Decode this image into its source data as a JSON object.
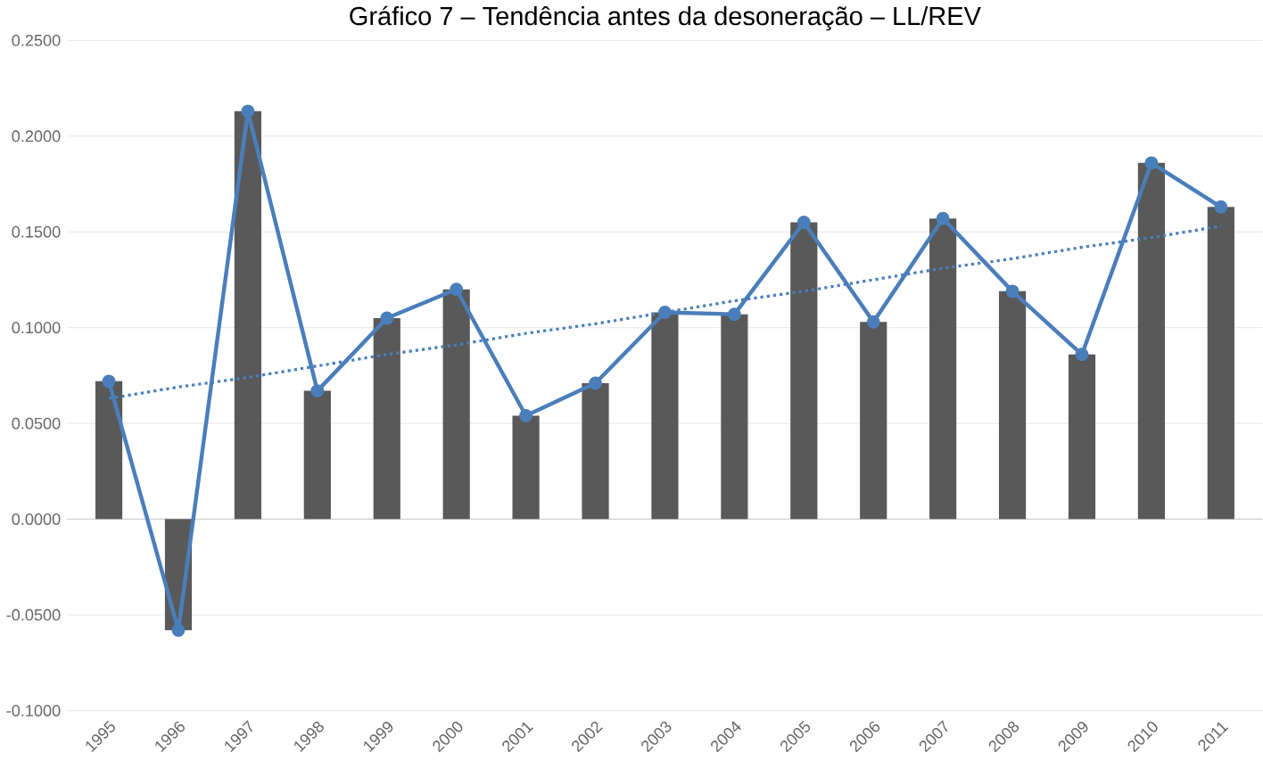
{
  "chart_data": {
    "type": "bar",
    "title": "Gráfico 7 – Tendência antes da desoneração – LL/REV",
    "categories": [
      "1995",
      "1996",
      "1997",
      "1998",
      "1999",
      "2000",
      "2001",
      "2002",
      "2003",
      "2004",
      "2005",
      "2006",
      "2007",
      "2008",
      "2009",
      "2010",
      "2011"
    ],
    "series": [
      {
        "color": "#595959",
        "values": [
          0.072,
          -0.058,
          0.213,
          0.067,
          0.105,
          0.12,
          0.054,
          0.071,
          0.108,
          0.107,
          0.155,
          0.103,
          0.157,
          0.119,
          0.086,
          0.186,
          0.163
        ]
      },
      {
        "type": "line",
        "color": "#4a7ebb",
        "marker": "circle",
        "line_style": "solid",
        "values": [
          0.072,
          -0.058,
          0.213,
          0.067,
          0.105,
          0.12,
          0.054,
          0.071,
          0.108,
          0.107,
          0.155,
          0.103,
          0.157,
          0.119,
          0.086,
          0.186,
          0.163
        ]
      },
      {
        "type": "line",
        "color": "#4a7ebb",
        "marker": "none",
        "line_style": "dotted",
        "values": [
          0.063,
          0.069,
          0.074,
          0.08,
          0.086,
          0.091,
          0.097,
          0.102,
          0.108,
          0.114,
          0.119,
          0.125,
          0.131,
          0.136,
          0.142,
          0.147,
          0.153
        ]
      }
    ],
    "ylim": [
      -0.1,
      0.25
    ],
    "yticks": [
      {
        "value": -0.1,
        "label": "-0.1000"
      },
      {
        "value": -0.05,
        "label": "-0.0500"
      },
      {
        "value": 0,
        "label": "0.0000"
      },
      {
        "value": 0.05,
        "label": "0.0500"
      },
      {
        "value": 0.1,
        "label": "0.1000"
      },
      {
        "value": 0.15,
        "label": "0.1500"
      },
      {
        "value": 0.2,
        "label": "0.2000"
      },
      {
        "value": 0.25,
        "label": "0.2500"
      }
    ],
    "grid": "y"
  }
}
